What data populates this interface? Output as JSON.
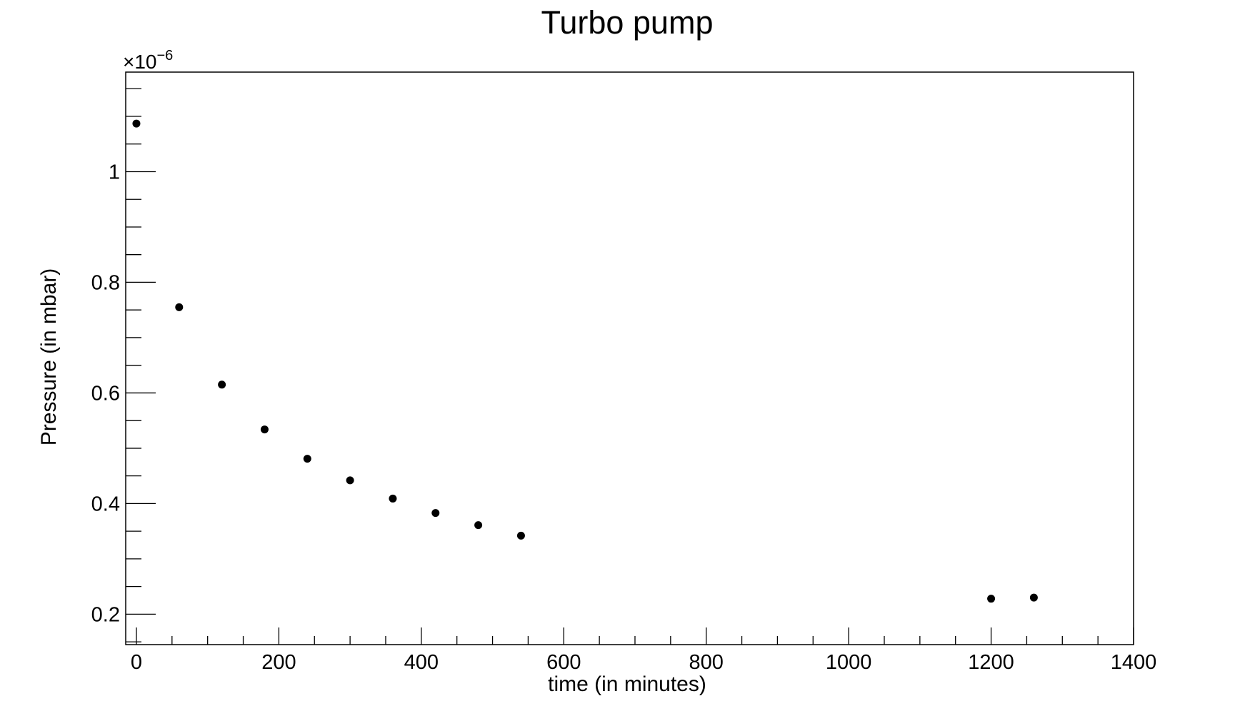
{
  "chart_data": {
    "type": "scatter",
    "title": "Turbo pump",
    "xlabel": "time (in minutes)",
    "ylabel": "Pressure (in mbar)",
    "y_multiplier_label": "×10",
    "y_multiplier_exponent": "−6",
    "xlim": [
      -15,
      1400
    ],
    "ylim": [
      0.145,
      1.18
    ],
    "x_ticks": [
      0,
      200,
      400,
      600,
      800,
      1000,
      1200,
      1400
    ],
    "x_tick_labels": [
      "0",
      "200",
      "400",
      "600",
      "800",
      "1000",
      "1200",
      "1400"
    ],
    "y_ticks": [
      0.2,
      0.4,
      0.6,
      0.8,
      1.0
    ],
    "y_tick_labels": [
      "0.2",
      "0.4",
      "0.6",
      "0.8",
      "1"
    ],
    "grid": false,
    "legend": false,
    "marker_color": "#000000",
    "series": [
      {
        "x": [
          0,
          60,
          120,
          180,
          240,
          300,
          360,
          420,
          480,
          540,
          1200,
          1260
        ],
        "y": [
          1.087,
          0.755,
          0.615,
          0.534,
          0.481,
          0.442,
          0.409,
          0.383,
          0.361,
          0.342,
          0.228,
          0.23
        ]
      }
    ]
  }
}
